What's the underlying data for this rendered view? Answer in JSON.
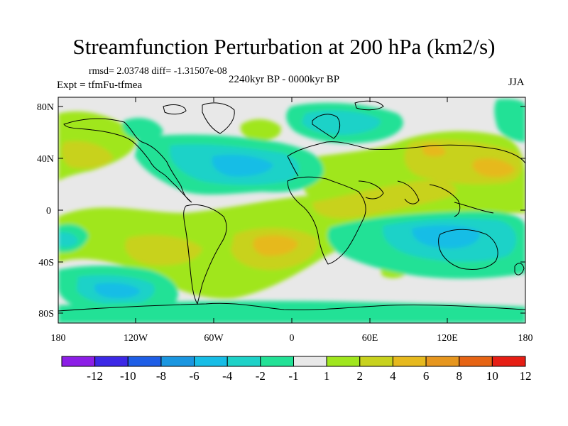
{
  "title": "Streamfunction Perturbation at 200 hPa (km2/s)",
  "stats": "rmsd= 2.03748 diff= -1.31507e-08",
  "experiment": "Expt = tfmFu-tfmea",
  "period": "2240kyr BP - 0000kyr BP",
  "season": "JJA",
  "lat_axis": [
    "80N",
    "40N",
    "0",
    "40S",
    "80S"
  ],
  "lon_axis": [
    "180",
    "120W",
    "60W",
    "0",
    "60E",
    "120E",
    "180"
  ],
  "colorbar": {
    "labels": [
      "-12",
      "-10",
      "-8",
      "-6",
      "-4",
      "-2",
      "-1",
      "1",
      "2",
      "4",
      "6",
      "8",
      "10",
      "12"
    ],
    "colors": [
      "#8c1ee6",
      "#3c28e6",
      "#1e5ee6",
      "#1a96e0",
      "#17bde6",
      "#1ed2c8",
      "#23e196",
      "#e8e8e8",
      "#a0e61e",
      "#c8d21e",
      "#e6b91e",
      "#e6961e",
      "#e66414",
      "#e61e14"
    ]
  },
  "map_fields": {
    "background": "#e8e8e8",
    "coast": "#000000"
  }
}
